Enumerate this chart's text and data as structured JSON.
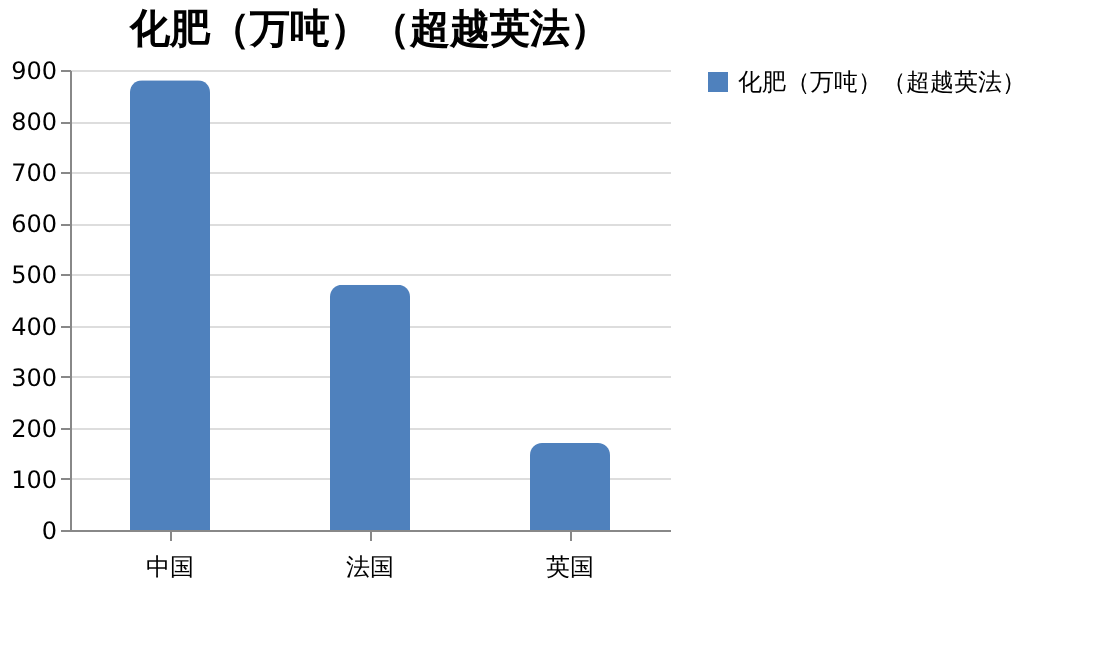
{
  "chart_data": {
    "type": "bar",
    "title": "化肥（万吨）（超越英法）",
    "categories": [
      "中国",
      "法国",
      "英国"
    ],
    "series": [
      {
        "name": "化肥（万吨）（超越英法）",
        "color": "#4f81bd",
        "values": [
          880,
          480,
          170
        ]
      }
    ],
    "ylim": [
      0,
      900
    ],
    "yticks": [
      0,
      100,
      200,
      300,
      400,
      500,
      600,
      700,
      800,
      900
    ],
    "grid": "y",
    "legend": "right"
  }
}
